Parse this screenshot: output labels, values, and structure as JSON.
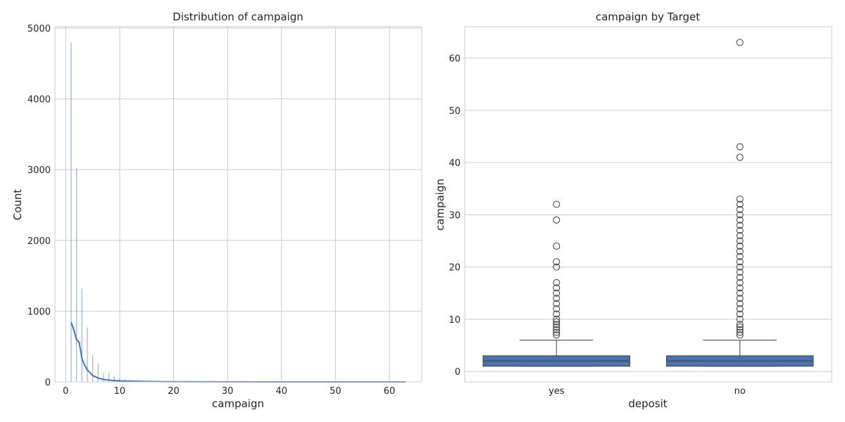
{
  "chart_data": [
    {
      "type": "histogram",
      "title": "Distribution of campaign",
      "xlabel": "campaign",
      "ylabel": "Count",
      "xlim": [
        -2,
        66
      ],
      "ylim": [
        0,
        5020
      ],
      "xticks": [
        0,
        10,
        20,
        30,
        40,
        50,
        60
      ],
      "yticks": [
        0,
        1000,
        2000,
        3000,
        4000,
        5000
      ],
      "grid": true,
      "bar_color": "#4c72b0",
      "kde_color": "#4c72b0",
      "bars": [
        {
          "x": 1,
          "count": 4800
        },
        {
          "x": 2,
          "count": 3020
        },
        {
          "x": 3,
          "count": 1320
        },
        {
          "x": 4,
          "count": 770
        },
        {
          "x": 5,
          "count": 380
        },
        {
          "x": 6,
          "count": 260
        },
        {
          "x": 7,
          "count": 130
        },
        {
          "x": 8,
          "count": 130
        },
        {
          "x": 9,
          "count": 80
        },
        {
          "x": 10,
          "count": 50
        },
        {
          "x": 11,
          "count": 40
        },
        {
          "x": 12,
          "count": 30
        },
        {
          "x": 13,
          "count": 25
        },
        {
          "x": 14,
          "count": 18
        },
        {
          "x": 15,
          "count": 12
        },
        {
          "x": 16,
          "count": 8
        },
        {
          "x": 17,
          "count": 6
        },
        {
          "x": 18,
          "count": 5
        },
        {
          "x": 19,
          "count": 4
        },
        {
          "x": 20,
          "count": 3
        }
      ],
      "kde": {
        "x": [
          1,
          1.5,
          2,
          2.5,
          3,
          3.5,
          4,
          5,
          6,
          7,
          8,
          10,
          12,
          15,
          20,
          30,
          40,
          50,
          63
        ],
        "y": [
          840,
          740,
          600,
          560,
          330,
          240,
          170,
          90,
          55,
          35,
          25,
          15,
          10,
          6,
          3,
          1,
          0,
          0,
          0
        ]
      }
    },
    {
      "type": "box",
      "title": "campaign by Target",
      "xlabel": "deposit",
      "ylabel": "campaign",
      "ylim": [
        -2,
        66
      ],
      "yticks": [
        0,
        10,
        20,
        30,
        40,
        50,
        60
      ],
      "grid": true,
      "box_color": "#4c72b0",
      "categories": [
        "yes",
        "no"
      ],
      "boxes": [
        {
          "name": "yes",
          "whisker_low": 1,
          "q1": 1,
          "median": 2,
          "q3": 3,
          "whisker_high": 6,
          "outliers": [
            7,
            7.5,
            8,
            8.5,
            9,
            9.5,
            10,
            11,
            12,
            13,
            14,
            15,
            16,
            17,
            20,
            21,
            24,
            29,
            32
          ]
        },
        {
          "name": "no",
          "whisker_low": 1,
          "q1": 1,
          "median": 2,
          "q3": 3,
          "whisker_high": 6,
          "outliers": [
            7,
            7.5,
            8,
            8.5,
            9,
            10,
            11,
            12,
            13,
            14,
            15,
            16,
            17,
            18,
            19,
            20,
            21,
            22,
            23,
            24,
            25,
            26,
            27,
            28,
            29,
            30,
            31,
            32,
            33,
            41,
            43,
            63
          ]
        }
      ]
    }
  ]
}
